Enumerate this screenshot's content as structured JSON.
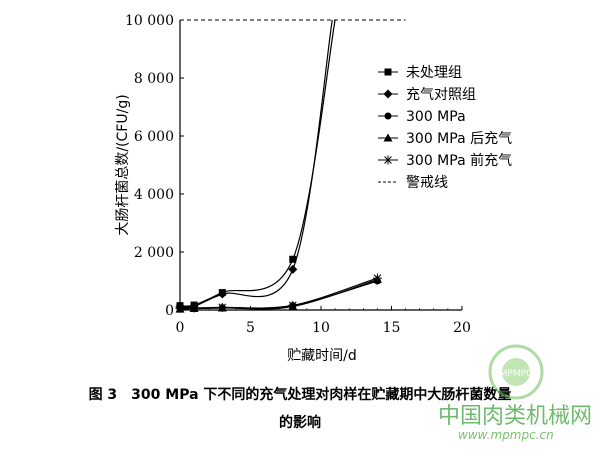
{
  "chart_data": {
    "type": "line",
    "xlabel": "贮藏时间/d",
    "ylabel": "大肠杆菌总数/(CFU/g)",
    "xlim": [
      0,
      20
    ],
    "ylim": [
      0,
      10000
    ],
    "xticks": [
      "0",
      "5",
      "10",
      "15",
      "20"
    ],
    "yticks": [
      "0",
      "2 000",
      "4 000",
      "6 000",
      "8 000",
      "10 000"
    ],
    "grid": false,
    "legend_position": "top-right",
    "series": [
      {
        "name": "未处理组",
        "marker": "square",
        "x": [
          0,
          1,
          3,
          8,
          11
        ],
        "y": [
          150,
          170,
          600,
          1750,
          10000
        ]
      },
      {
        "name": "充气对照组",
        "marker": "diamond",
        "x": [
          0,
          1,
          3,
          8,
          10.8
        ],
        "y": [
          120,
          130,
          550,
          1400,
          10000
        ]
      },
      {
        "name": "300 MPa",
        "marker": "circle",
        "x": [
          0,
          1,
          3,
          8,
          14
        ],
        "y": [
          50,
          60,
          80,
          150,
          1000
        ]
      },
      {
        "name": "300 MPa 后充气",
        "marker": "triangle",
        "x": [
          0,
          1,
          3,
          8,
          14
        ],
        "y": [
          30,
          50,
          70,
          120,
          1050
        ]
      },
      {
        "name": "300 MPa 前充气",
        "marker": "star",
        "x": [
          0,
          1,
          3,
          8,
          14
        ],
        "y": [
          60,
          70,
          90,
          160,
          1100
        ]
      }
    ],
    "threshold": {
      "name": "警戒线",
      "y": 10000,
      "x": [
        0,
        16
      ]
    }
  },
  "caption": {
    "line1": "图 3　300 MPa 下不同的充气处理对肉样在贮藏期中大肠杆菌数量",
    "line2": "的影响"
  },
  "watermark": {
    "brand": "中国肉类机械网",
    "url": "www.mpmpc.cn",
    "logo_text": "MPMPC"
  }
}
